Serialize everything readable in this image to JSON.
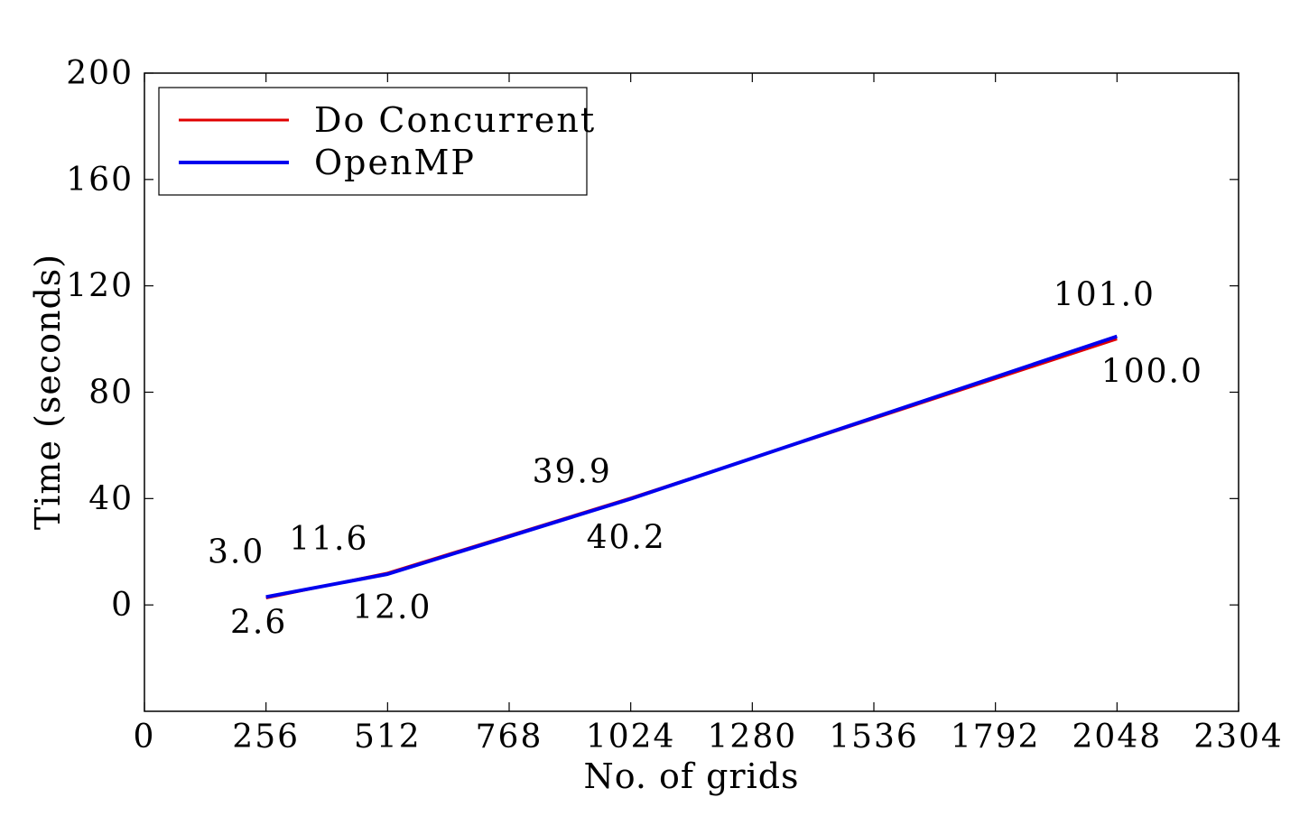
{
  "chart_data": {
    "type": "line",
    "xlabel": "No. of grids",
    "ylabel": "Time (seconds)",
    "xlim": [
      0,
      2304
    ],
    "ylim": [
      -40,
      200
    ],
    "xticks": [
      0,
      256,
      512,
      768,
      1024,
      1280,
      1536,
      1792,
      2048,
      2304
    ],
    "yticks": [
      0,
      40,
      80,
      120,
      160,
      200
    ],
    "x": [
      256,
      512,
      1024,
      2048
    ],
    "grid": false,
    "legend_position": "top-left",
    "series": [
      {
        "name": "Do Concurrent",
        "color": "#e00000",
        "values": [
          2.6,
          12.0,
          40.2,
          100.0
        ],
        "labels": [
          "2.6",
          "12.0",
          "40.2",
          "100.0"
        ]
      },
      {
        "name": "OpenMP",
        "color": "#0000ee",
        "values": [
          3.0,
          11.6,
          39.9,
          101.0
        ],
        "labels": [
          "3.0",
          "11.6",
          "39.9",
          "101.0"
        ]
      }
    ]
  }
}
